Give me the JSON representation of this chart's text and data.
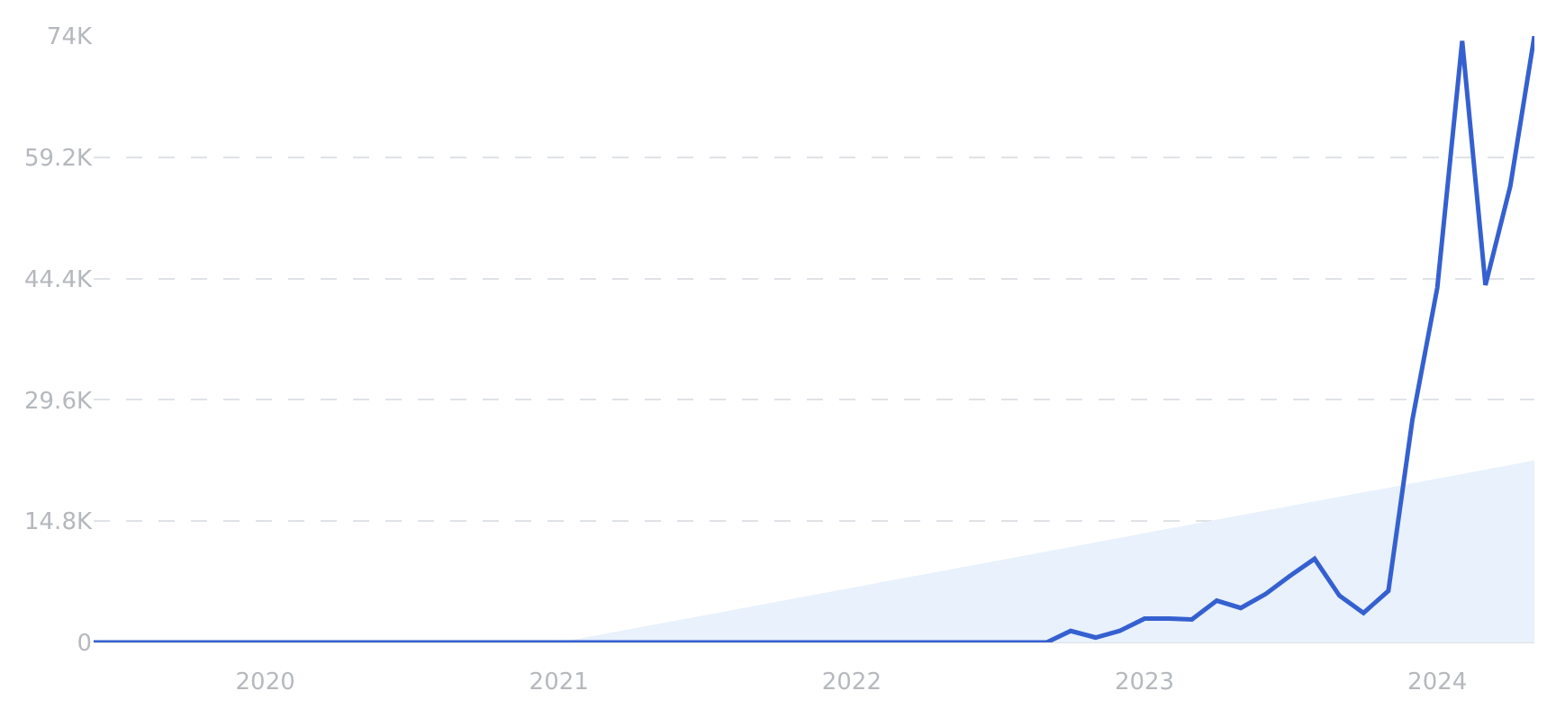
{
  "chart_data": {
    "type": "line",
    "series": [
      {
        "type": "area",
        "color": "#e8f1fc",
        "x": [
          "2021-01",
          "2024-05"
        ],
        "values": [
          0,
          22200
        ]
      },
      {
        "color": "#3560d0",
        "x": [
          "2019-06",
          "2022-09",
          "2022-10",
          "2022-11",
          "2022-12",
          "2023-01",
          "2023-02",
          "2023-03",
          "2023-04",
          "2023-05",
          "2023-06",
          "2023-07",
          "2023-08",
          "2023-09",
          "2023-10",
          "2023-11",
          "2023-12",
          "2024-01",
          "2024-02",
          "2024-03",
          "2024-04",
          "2024-05"
        ],
        "values": [
          0,
          0,
          1400,
          600,
          1400,
          2900,
          2900,
          2800,
          5100,
          4200,
          5900,
          8100,
          10200,
          5700,
          3600,
          6300,
          27200,
          43300,
          73400,
          43600,
          55700,
          74000
        ]
      }
    ],
    "xlim": [
      "2019-06",
      "2024-05"
    ],
    "xticks": [
      {
        "value": "2020-01",
        "label": "2020"
      },
      {
        "value": "2021-01",
        "label": "2021"
      },
      {
        "value": "2022-01",
        "label": "2022"
      },
      {
        "value": "2023-01",
        "label": "2023"
      },
      {
        "value": "2024-01",
        "label": "2024"
      }
    ],
    "ylim": [
      0,
      74000
    ],
    "yticks": [
      0,
      {
        "value": 14800,
        "label": "14.8K"
      },
      {
        "value": 29600,
        "label": "29.6K"
      },
      {
        "value": 44400,
        "label": "44.4K"
      },
      {
        "value": 59200,
        "label": "59.2K"
      },
      {
        "value": 74000,
        "label": "74K"
      }
    ],
    "grid": "y",
    "marker": "none",
    "line_style": "solid"
  }
}
